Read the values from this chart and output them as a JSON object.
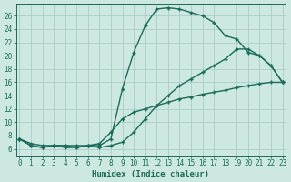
{
  "xlabel": "Humidex (Indice chaleur)",
  "bg_color": "#cce8e0",
  "grid_color": "#aacccc",
  "line_color": "#1a6b5a",
  "xlim": [
    -0.3,
    23.3
  ],
  "ylim": [
    5.0,
    27.8
  ],
  "xticks": [
    0,
    1,
    2,
    3,
    4,
    5,
    6,
    7,
    8,
    9,
    10,
    11,
    12,
    13,
    14,
    15,
    16,
    17,
    18,
    19,
    20,
    21,
    22,
    23
  ],
  "yticks": [
    6,
    8,
    10,
    12,
    14,
    16,
    18,
    20,
    22,
    24,
    26
  ],
  "curve1_x": [
    0,
    1,
    2,
    3,
    4,
    5,
    6,
    7,
    8,
    9,
    10,
    11,
    12,
    13,
    14,
    15,
    16,
    17,
    18,
    19,
    20,
    21,
    22,
    23
  ],
  "curve1_y": [
    7.5,
    6.5,
    6.2,
    6.5,
    6.5,
    6.5,
    6.5,
    6.5,
    7.5,
    15.0,
    20.5,
    24.5,
    27.0,
    27.2,
    27.0,
    26.5,
    26.0,
    25.0,
    23.0,
    22.5,
    20.5,
    20.0,
    18.5,
    16.0
  ],
  "curve2_x": [
    0,
    1,
    2,
    3,
    4,
    5,
    6,
    7,
    8,
    9,
    10,
    11,
    12,
    13,
    14,
    15,
    16,
    17,
    18,
    19,
    20,
    21,
    22,
    23
  ],
  "curve2_y": [
    7.5,
    6.5,
    6.2,
    6.5,
    6.5,
    6.2,
    6.5,
    6.2,
    6.5,
    7.0,
    8.5,
    10.5,
    12.5,
    14.0,
    15.5,
    16.5,
    17.5,
    18.5,
    19.5,
    21.0,
    21.0,
    20.0,
    18.5,
    16.0
  ],
  "curve3_x": [
    0,
    1,
    2,
    3,
    4,
    5,
    6,
    7,
    8,
    9,
    10,
    11,
    12,
    13,
    14,
    15,
    16,
    17,
    18,
    19,
    20,
    21,
    22,
    23
  ],
  "curve3_y": [
    7.5,
    6.8,
    6.5,
    6.5,
    6.2,
    6.2,
    6.5,
    6.8,
    8.5,
    10.5,
    11.5,
    12.0,
    12.5,
    13.0,
    13.5,
    13.8,
    14.2,
    14.5,
    14.8,
    15.2,
    15.5,
    15.8,
    16.0,
    16.0
  ]
}
